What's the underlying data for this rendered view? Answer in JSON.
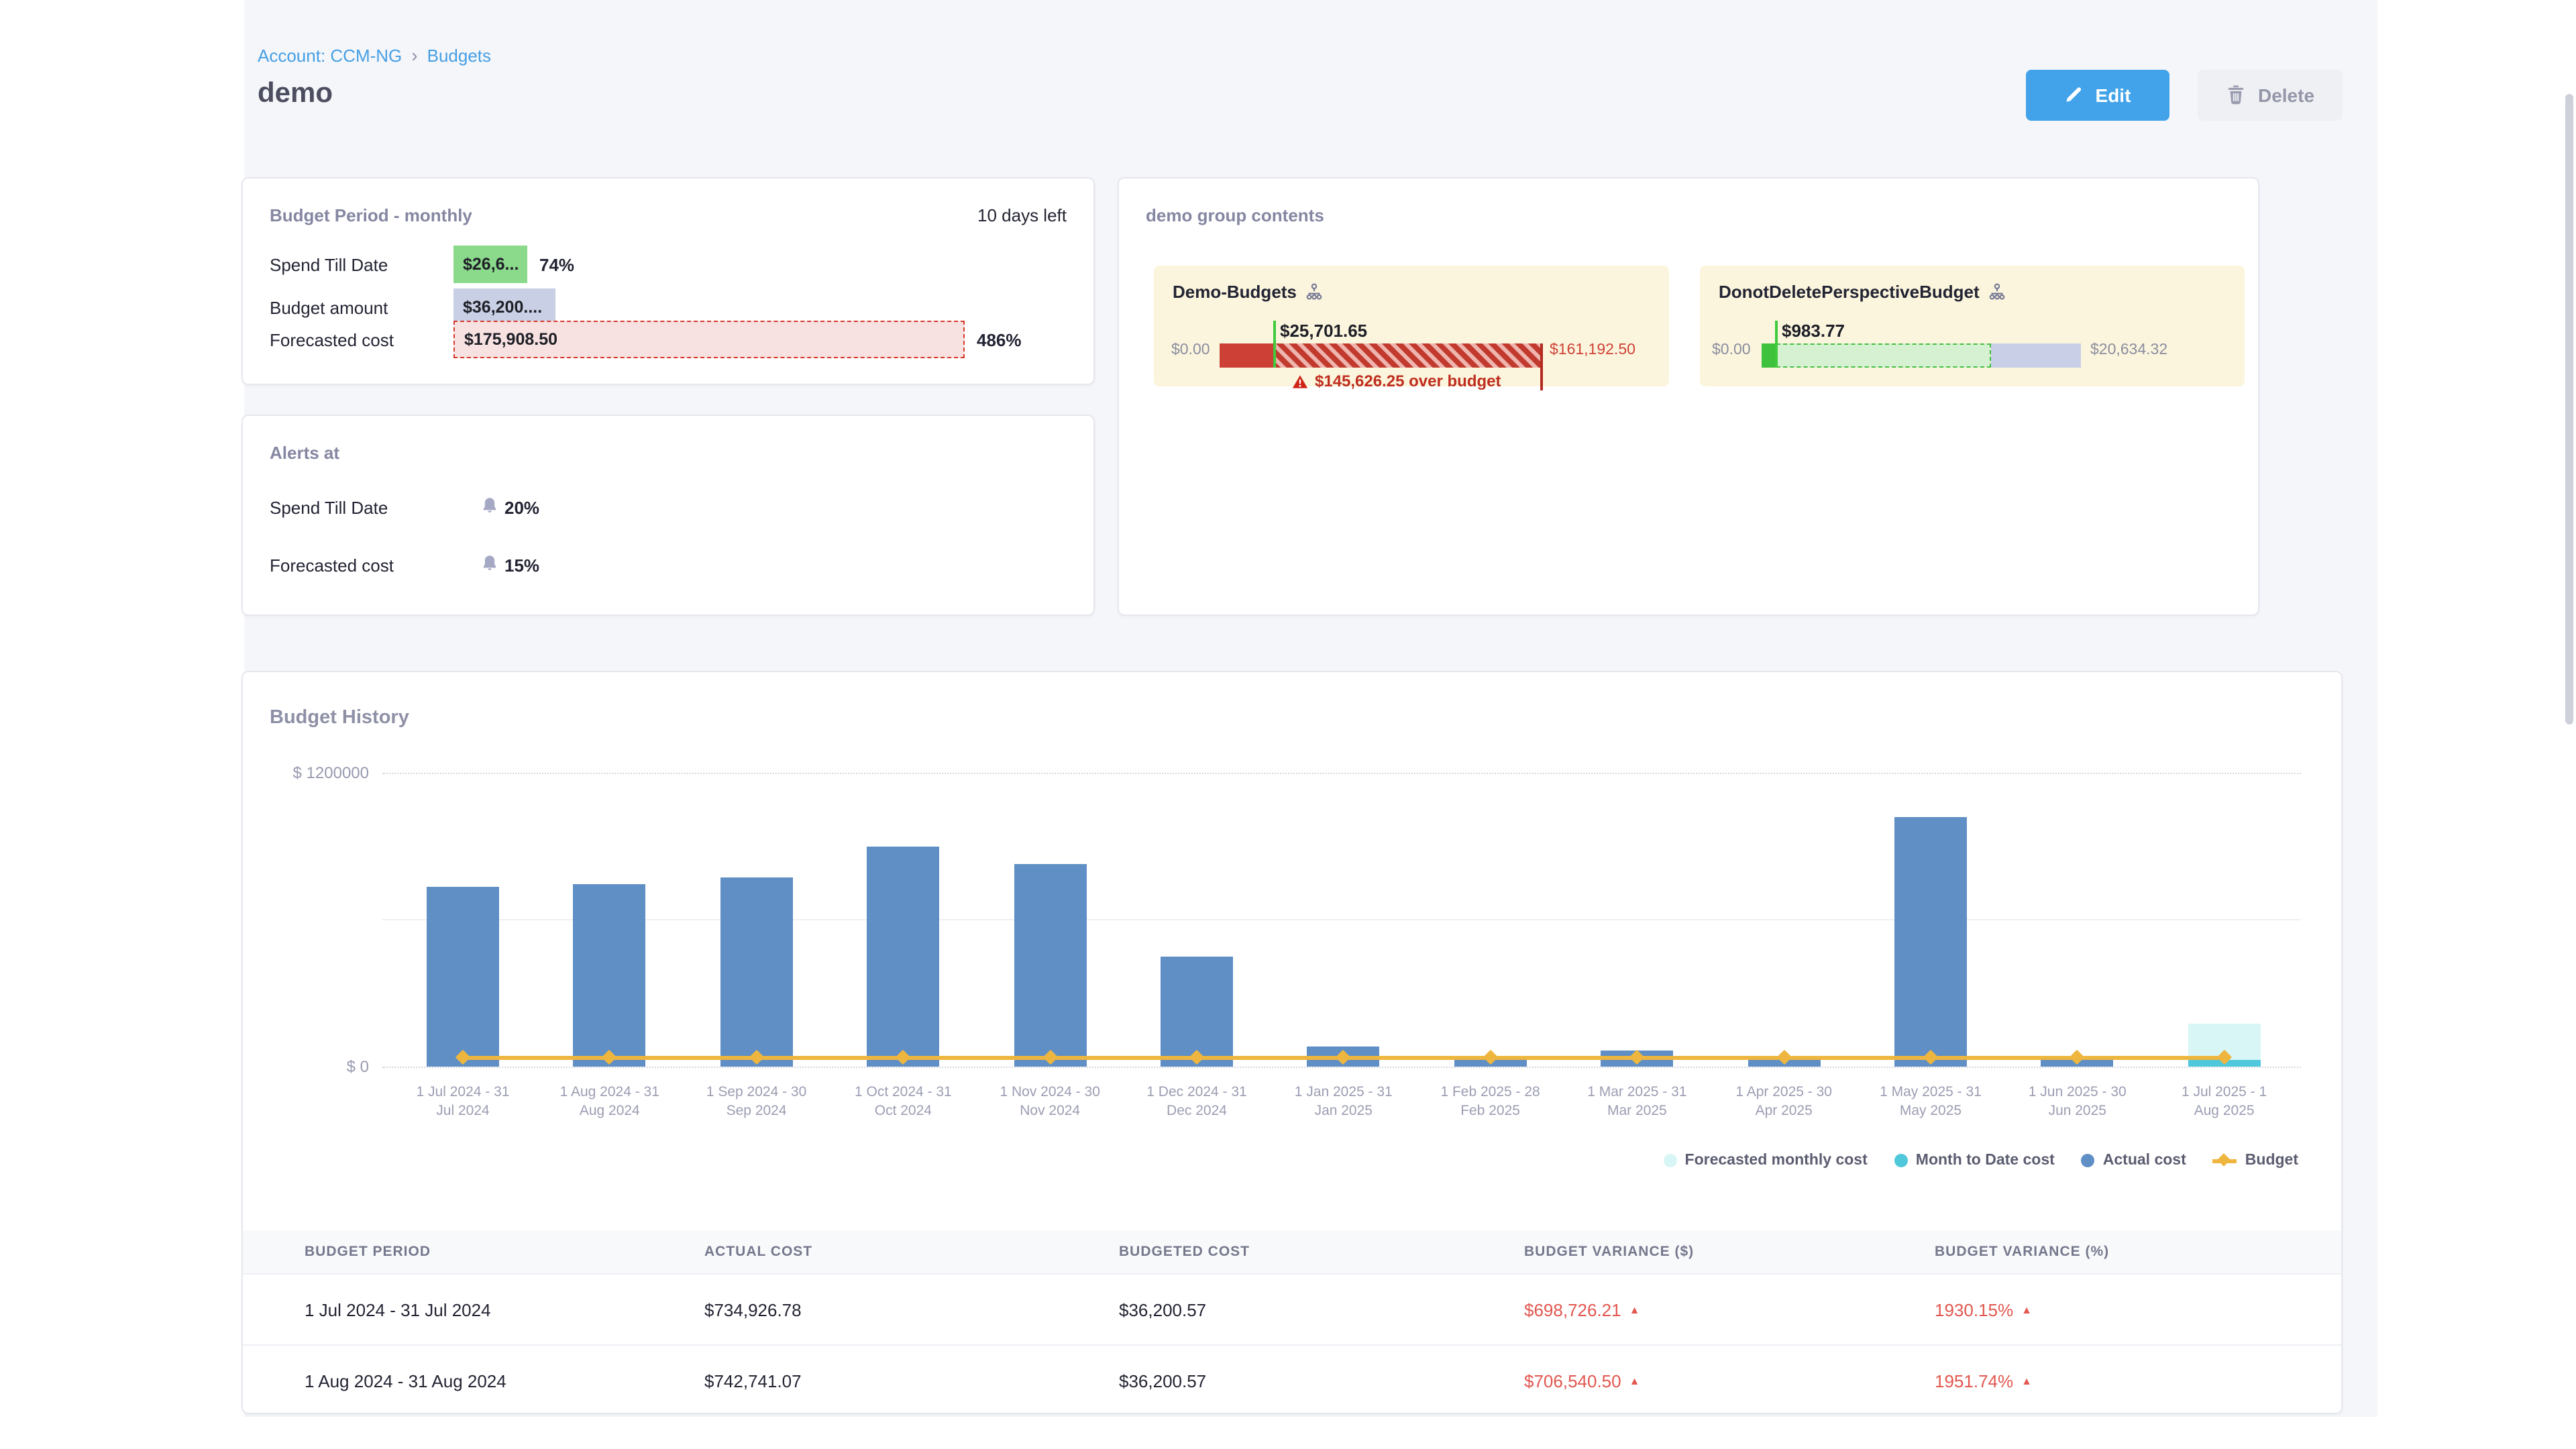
{
  "colors": {
    "accent_blue": "#42a3ea",
    "link_blue": "#459fe5",
    "bar_blue": "#5f8fc4",
    "mtd_cyan": "#4fc8dc",
    "forecast_cyan": "#d9f6f7",
    "budget_orange": "#eeb63e",
    "over_red": "#cc4036",
    "ok_green": "#3ec13c",
    "chip_green": "#8bd98b",
    "chip_lavender": "#c9cfe4",
    "chip_pink": "#f8e2e1",
    "danger_text": "#bf2d1f",
    "table_red": "#e2574f",
    "group_card_bg": "#fbf5dd"
  },
  "breadcrumb": {
    "items": [
      "Account: CCM-NG",
      "Budgets"
    ],
    "separator": "›"
  },
  "title": "demo",
  "actions": {
    "edit": "Edit",
    "delete": "Delete"
  },
  "budget_period": {
    "title": "Budget Period - monthly",
    "days_left": "10 days left",
    "rows": [
      {
        "label": "Spend Till Date",
        "value": "$26,6...",
        "suffix": "74%",
        "type": "spend"
      },
      {
        "label": "Budget amount",
        "value": "$36,200....",
        "suffix": "",
        "type": "budget"
      },
      {
        "label": "Forecasted cost",
        "value": "$175,908.50",
        "suffix": "486%",
        "type": "forecast"
      }
    ]
  },
  "alerts": {
    "title": "Alerts at",
    "rows": [
      {
        "label": "Spend Till Date",
        "value": "20%"
      },
      {
        "label": "Forecasted cost",
        "value": "15%"
      }
    ]
  },
  "group_contents": {
    "title": "demo group contents",
    "cards": [
      {
        "name": "Demo-Budgets",
        "state": "over",
        "min": "$0.00",
        "max": "$161,192.50",
        "spend": "$25,701.65",
        "alert": "$145,626.25 over budget"
      },
      {
        "name": "DonotDeletePerspectiveBudget",
        "state": "under",
        "min": "$0.00",
        "max": "$20,634.32",
        "spend": "$983.77",
        "alert": ""
      }
    ]
  },
  "budget_history": {
    "title": "Budget History"
  },
  "chart_data": {
    "type": "bar",
    "title": "Budget History",
    "xlabel": "",
    "ylabel": "$",
    "ylim": [
      0,
      1200000
    ],
    "yticks": [
      "$ 1200000",
      "$ 0"
    ],
    "grid": "horizontal; dotted at 0 and 1200000, faint solid at 600000",
    "legend_position": "bottom-right",
    "categories": [
      "1 Jul 2024 - 31 Jul 2024",
      "1 Aug 2024 - 31 Aug 2024",
      "1 Sep 2024 - 30 Sep 2024",
      "1 Oct 2024 - 31 Oct 2024",
      "1 Nov 2024 - 30 Nov 2024",
      "1 Dec 2024 - 31 Dec 2024",
      "1 Jan 2025 - 31 Jan 2025",
      "1 Feb 2025 - 28 Feb 2025",
      "1 Mar 2025 - 31 Mar 2025",
      "1 Apr 2025 - 30 Apr 2025",
      "1 May 2025 - 31 May 2025",
      "1 Jun 2025 - 30 Jun 2025",
      "1 Jul 2025 - 1 Aug 2025"
    ],
    "tick_lines": [
      [
        "1 Jul 2024 - 31",
        "Jul 2024"
      ],
      [
        "1 Aug 2024 - 31",
        "Aug 2024"
      ],
      [
        "1 Sep 2024 - 30",
        "Sep 2024"
      ],
      [
        "1 Oct 2024 - 31",
        "Oct 2024"
      ],
      [
        "1 Nov 2024 - 30",
        "Nov 2024"
      ],
      [
        "1 Dec 2024 - 31",
        "Dec 2024"
      ],
      [
        "1 Jan 2025 - 31",
        "Jan 2025"
      ],
      [
        "1 Feb 2025 - 28",
        "Feb 2025"
      ],
      [
        "1 Mar 2025 - 31",
        "Mar 2025"
      ],
      [
        "1 Apr 2025 - 30",
        "Apr 2025"
      ],
      [
        "1 May 2025 - 31",
        "May 2025"
      ],
      [
        "1 Jun 2025 - 30",
        "Jun 2025"
      ],
      [
        "1 Jul 2025 - 1",
        "Aug 2025"
      ]
    ],
    "series": [
      {
        "name": "Actual cost",
        "type": "column",
        "color": "#5f8fc4",
        "values": [
          734926.78,
          742741.07,
          770000,
          900000,
          830000,
          450000,
          80000,
          45000,
          65000,
          40000,
          1020000,
          40000,
          null
        ]
      },
      {
        "name": "Month to Date cost",
        "type": "column",
        "color": "#4fc8dc",
        "values": [
          null,
          null,
          null,
          null,
          null,
          null,
          null,
          null,
          null,
          null,
          null,
          null,
          26600
        ]
      },
      {
        "name": "Forecasted monthly cost",
        "type": "column",
        "color": "#d9f6f7",
        "values": [
          null,
          null,
          null,
          null,
          null,
          null,
          null,
          null,
          null,
          null,
          null,
          null,
          175908.5
        ]
      },
      {
        "name": "Budget",
        "type": "line",
        "color": "#eeb63e",
        "values": [
          36200,
          36200,
          36200,
          36200,
          36200,
          36200,
          36200,
          36200,
          36200,
          36200,
          36200,
          36200,
          36200
        ]
      }
    ]
  },
  "table": {
    "headers": [
      "BUDGET PERIOD",
      "ACTUAL COST",
      "BUDGETED COST",
      "BUDGET VARIANCE ($)",
      "BUDGET VARIANCE (%)"
    ],
    "rows": [
      {
        "period": "1 Jul 2024 - 31 Jul 2024",
        "actual": "$734,926.78",
        "budgeted": "$36,200.57",
        "variance_usd": "$698,726.21",
        "variance_pct": "1930.15%"
      },
      {
        "period": "1 Aug 2024 - 31 Aug 2024",
        "actual": "$742,741.07",
        "budgeted": "$36,200.57",
        "variance_usd": "$706,540.50",
        "variance_pct": "1951.74%"
      }
    ]
  }
}
